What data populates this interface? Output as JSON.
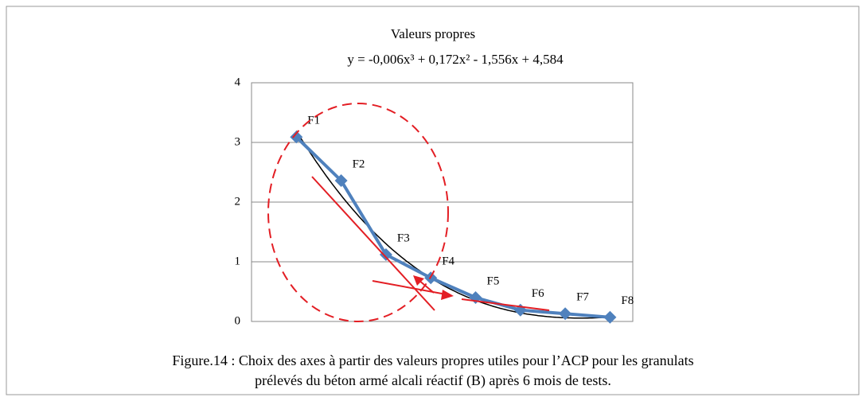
{
  "chart_data": {
    "type": "line",
    "title": "Valeurs propres",
    "categories": [
      "F1",
      "F2",
      "F3",
      "F4",
      "F5",
      "F6",
      "F7",
      "F8"
    ],
    "series": [
      {
        "color": "#4f81bd",
        "values": [
          3.09,
          2.36,
          1.12,
          0.73,
          0.4,
          0.19,
          0.13,
          0.07
        ]
      }
    ],
    "trendline": {
      "label": "y = -0,006x³ + 0,172x² - 1,556x + 4,584",
      "coefficients": [
        -0.006,
        0.172,
        -1.556,
        4.584
      ],
      "color": "#000000"
    },
    "ylim": [
      0,
      4
    ],
    "yticks": [
      0,
      1,
      2,
      3,
      4
    ],
    "grid": true,
    "caption": [
      "Figure.14 : Choix des axes à partir des valeurs propres utiles pour l’ACP pour les granulats",
      "prélevés du béton armé alcali réactif (B) après 6 mois de tests."
    ]
  }
}
